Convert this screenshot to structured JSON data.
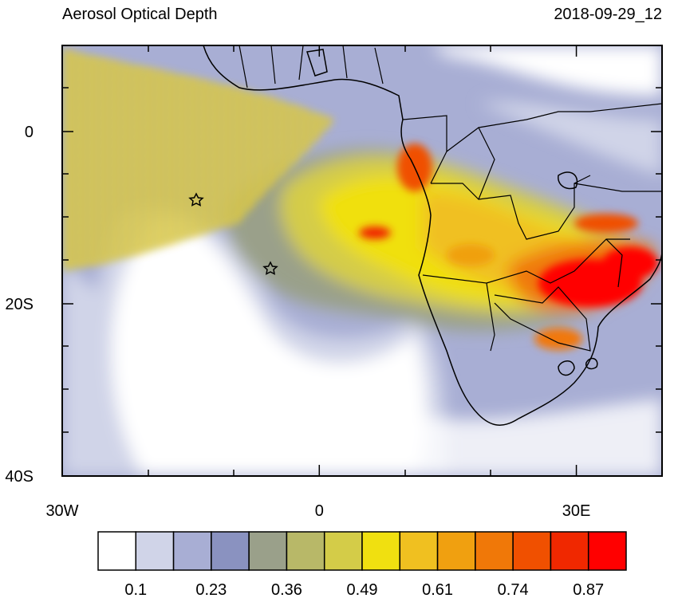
{
  "header": {
    "title": "Aerosol Optical Depth",
    "date": "2018-09-29_12"
  },
  "map": {
    "xlim": [
      -30,
      40
    ],
    "ylim": [
      -40,
      10
    ],
    "xticks": [
      {
        "value": -30,
        "label": "30W"
      },
      0,
      {
        "value": 30,
        "label": "30E"
      }
    ],
    "yticks": [
      0,
      {
        "value": -20,
        "label": "20S"
      },
      {
        "value": -40,
        "label": "40S"
      }
    ]
  },
  "colorbar": {
    "colors": [
      "#ffffff",
      "#d0d4e8",
      "#a8aed4",
      "#8a92c0",
      "#9aa08a",
      "#b8b868",
      "#d4cc48",
      "#f0e010",
      "#f0c020",
      "#f0a010",
      "#f07808",
      "#f05000",
      "#f02800",
      "#ff0000"
    ],
    "labels": [
      0.1,
      0.23,
      0.36,
      0.49,
      0.61,
      0.74,
      0.87
    ]
  }
}
